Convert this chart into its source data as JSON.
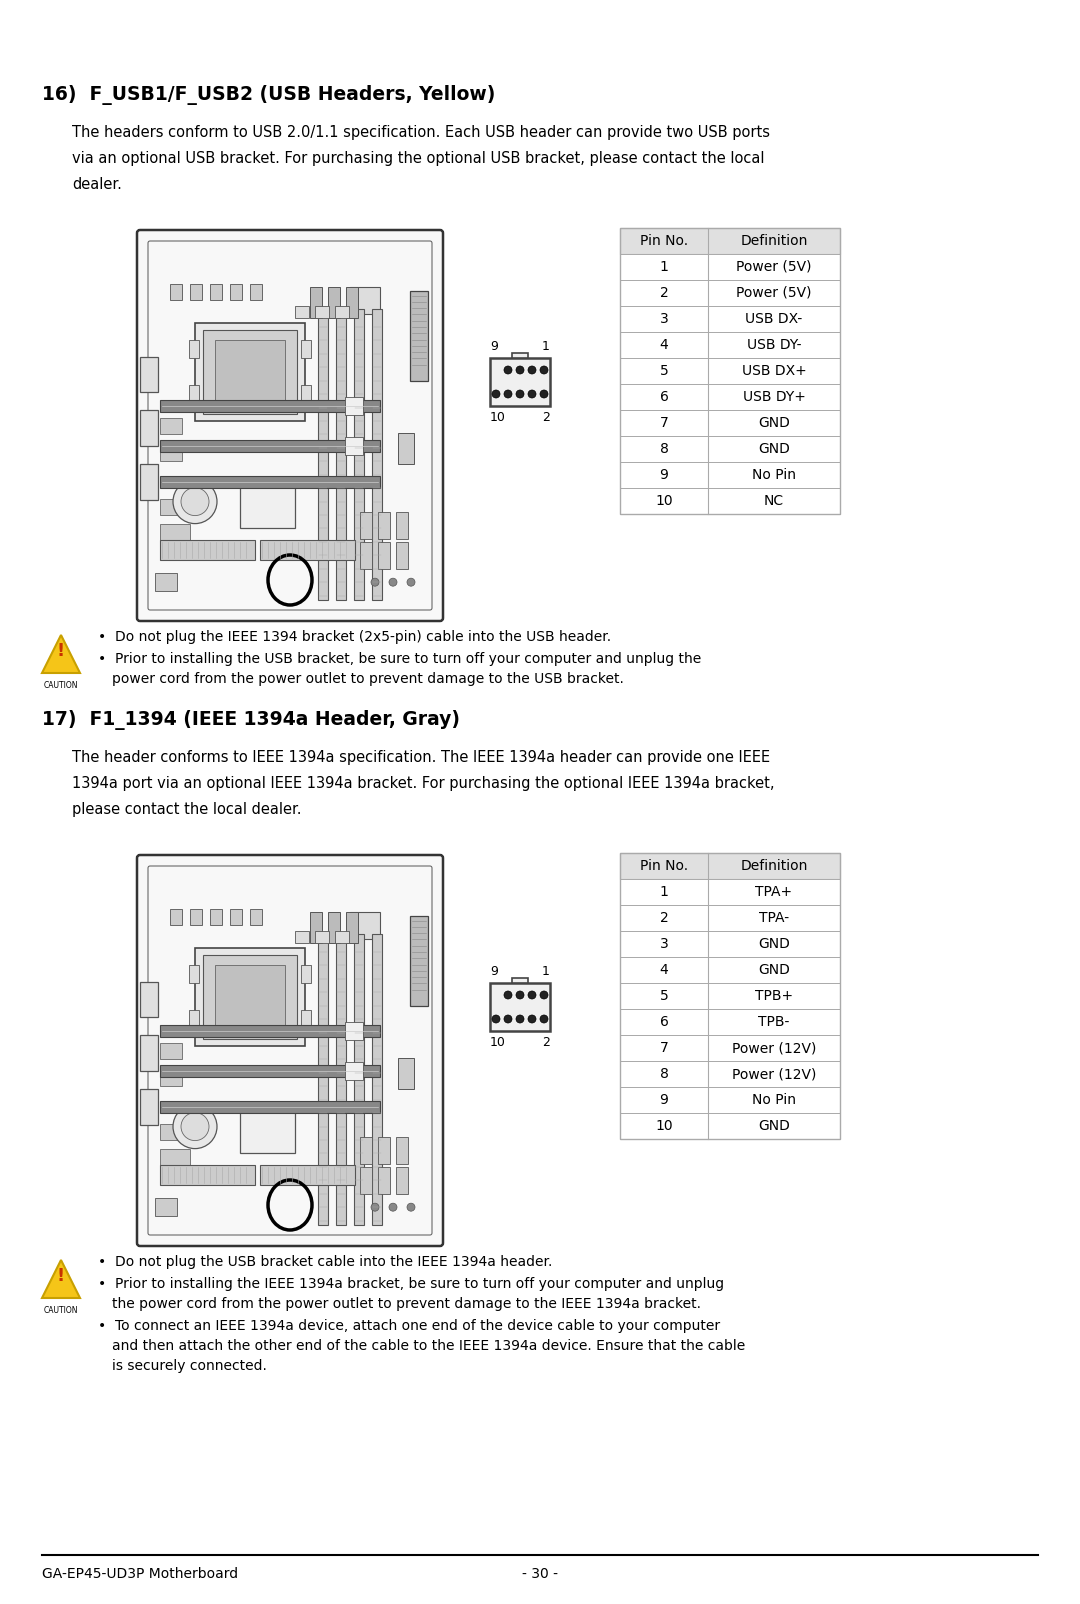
{
  "bg_color": "#ffffff",
  "text_color": "#000000",
  "section1_title": "16)  F_USB1/F_USB2 (USB Headers, Yellow)",
  "section1_body_lines": [
    "The headers conform to USB 2.0/1.1 specification. Each USB header can provide two USB ports",
    "via an optional USB bracket. For purchasing the optional USB bracket, please contact the local",
    "dealer."
  ],
  "section2_title": "17)  F1_1394 (IEEE 1394a Header, Gray)",
  "section2_body_lines": [
    "The header conforms to IEEE 1394a specification. The IEEE 1394a header can provide one IEEE",
    "1394a port via an optional IEEE 1394a bracket. For purchasing the optional IEEE 1394a bracket,",
    "please contact the local dealer."
  ],
  "usb_table_headers": [
    "Pin No.",
    "Definition"
  ],
  "usb_table_rows": [
    [
      "1",
      "Power (5V)"
    ],
    [
      "2",
      "Power (5V)"
    ],
    [
      "3",
      "USB DX-"
    ],
    [
      "4",
      "USB DY-"
    ],
    [
      "5",
      "USB DX+"
    ],
    [
      "6",
      "USB DY+"
    ],
    [
      "7",
      "GND"
    ],
    [
      "8",
      "GND"
    ],
    [
      "9",
      "No Pin"
    ],
    [
      "10",
      "NC"
    ]
  ],
  "ieee_table_headers": [
    "Pin No.",
    "Definition"
  ],
  "ieee_table_rows": [
    [
      "1",
      "TPA+"
    ],
    [
      "2",
      "TPA-"
    ],
    [
      "3",
      "GND"
    ],
    [
      "4",
      "GND"
    ],
    [
      "5",
      "TPB+"
    ],
    [
      "6",
      "TPB-"
    ],
    [
      "7",
      "Power (12V)"
    ],
    [
      "8",
      "Power (12V)"
    ],
    [
      "9",
      "No Pin"
    ],
    [
      "10",
      "GND"
    ]
  ],
  "caution1_line1": "Do not plug the IEEE 1394 bracket (2x5-pin) cable into the USB header.",
  "caution1_line2a": "Prior to installing the USB bracket, be sure to turn off your computer and unplug the",
  "caution1_line2b": "power cord from the power outlet to prevent damage to the USB bracket.",
  "caution2_line1": "Do not plug the USB bracket cable into the IEEE 1394a header.",
  "caution2_line2a": "Prior to installing the IEEE 1394a bracket, be sure to turn off your computer and unplug",
  "caution2_line2b": "the power cord from the power outlet to prevent damage to the IEEE 1394a bracket.",
  "caution2_line3a": "To connect an IEEE 1394a device, attach one end of the device cable to your computer",
  "caution2_line3b": "and then attach the other end of the cable to the IEEE 1394a device. Ensure that the cable",
  "caution2_line3c": "is securely connected.",
  "footer_left": "GA-EP45-UD3P Motherboard",
  "footer_center": "- 30 -",
  "table_border_color": "#aaaaaa",
  "table_header_bg": "#e0e0e0"
}
